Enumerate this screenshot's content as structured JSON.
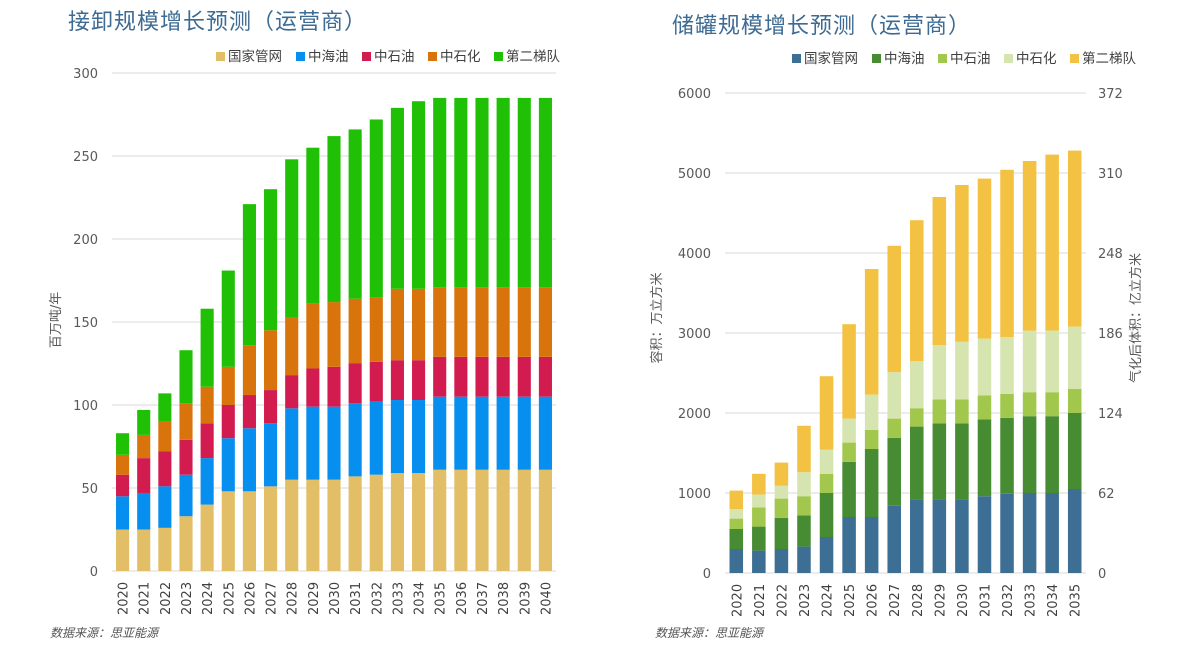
{
  "chart_data": [
    {
      "type": "bar",
      "stacked": true,
      "title": "接卸规模增长预测（运营商）",
      "ylabel": "百万吨/年",
      "xlabel": "",
      "ylim": [
        0,
        300
      ],
      "yticks": [
        0,
        50,
        100,
        150,
        200,
        250,
        300
      ],
      "grid": true,
      "legend": "top-right",
      "source": "数据来源：思亚能源",
      "categories": [
        "2020",
        "2021",
        "2022",
        "2023",
        "2024",
        "2025",
        "2026",
        "2027",
        "2028",
        "2029",
        "2030",
        "2031",
        "2032",
        "2033",
        "2034",
        "2035",
        "2036",
        "2037",
        "2038",
        "2039",
        "2040"
      ],
      "series": [
        {
          "name": "国家管网",
          "color": "#e2be67",
          "values": [
            25,
            25,
            26,
            33,
            40,
            48,
            48,
            51,
            55,
            55,
            55,
            57,
            58,
            59,
            59,
            61,
            61,
            61,
            61,
            61,
            61
          ]
        },
        {
          "name": "中海油",
          "color": "#078ff0",
          "values": [
            20,
            22,
            25,
            25,
            28,
            32,
            38,
            38,
            43,
            44,
            44,
            44,
            44,
            44,
            44,
            44,
            44,
            44,
            44,
            44,
            44
          ]
        },
        {
          "name": "中石油",
          "color": "#d21c50",
          "values": [
            13,
            21,
            21,
            21,
            21,
            20,
            20,
            20,
            20,
            23,
            24,
            24,
            24,
            24,
            24,
            24,
            24,
            24,
            24,
            24,
            24
          ]
        },
        {
          "name": "中石化",
          "color": "#d9730b",
          "values": [
            12,
            14,
            18,
            22,
            22,
            23,
            30,
            36,
            35,
            39,
            39,
            39,
            39,
            43,
            43,
            42,
            42,
            42,
            42,
            42,
            42
          ]
        },
        {
          "name": "第二梯队",
          "color": "#20c006",
          "values": [
            13,
            15,
            17,
            32,
            47,
            58,
            85,
            85,
            95,
            94,
            100,
            102,
            107,
            109,
            113,
            114,
            114,
            114,
            114,
            114,
            114
          ]
        }
      ]
    },
    {
      "type": "bar",
      "stacked": true,
      "title": "储罐规模增长预测（运营商）",
      "ylabel": "容积：万立方米",
      "y2label": "气化后体积：亿立方米",
      "xlabel": "",
      "ylim": [
        0,
        6000
      ],
      "yticks": [
        0,
        1000,
        2000,
        3000,
        4000,
        5000,
        6000
      ],
      "y2lim": [
        0,
        372
      ],
      "y2ticks": [
        0,
        62,
        124,
        186,
        248,
        310,
        372
      ],
      "grid": true,
      "legend": "top-right",
      "source": "数据来源：思亚能源",
      "categories": [
        "2020",
        "2021",
        "2022",
        "2023",
        "2024",
        "2025",
        "2026",
        "2027",
        "2028",
        "2029",
        "2030",
        "2031",
        "2032",
        "2033",
        "2034",
        "2035"
      ],
      "series": [
        {
          "name": "国家管网",
          "color": "#3d6f94",
          "values": [
            300,
            280,
            300,
            330,
            450,
            700,
            700,
            840,
            920,
            920,
            920,
            960,
            990,
            1000,
            1000,
            1050
          ]
        },
        {
          "name": "中海油",
          "color": "#478b32",
          "values": [
            250,
            300,
            390,
            390,
            550,
            690,
            850,
            850,
            910,
            950,
            950,
            960,
            950,
            960,
            960,
            950
          ]
        },
        {
          "name": "中石油",
          "color": "#a2c74d",
          "values": [
            130,
            240,
            240,
            240,
            240,
            240,
            240,
            240,
            230,
            300,
            300,
            300,
            300,
            300,
            300,
            300
          ]
        },
        {
          "name": "中石化",
          "color": "#d6e4b0",
          "values": [
            120,
            160,
            160,
            300,
            300,
            300,
            440,
            580,
            590,
            680,
            720,
            710,
            710,
            770,
            770,
            780
          ]
        },
        {
          "name": "第二梯队",
          "color": "#f4c242",
          "values": [
            230,
            260,
            290,
            580,
            920,
            1180,
            1570,
            1580,
            1760,
            1850,
            1960,
            2000,
            2090,
            2120,
            2200,
            2200
          ]
        }
      ]
    }
  ]
}
